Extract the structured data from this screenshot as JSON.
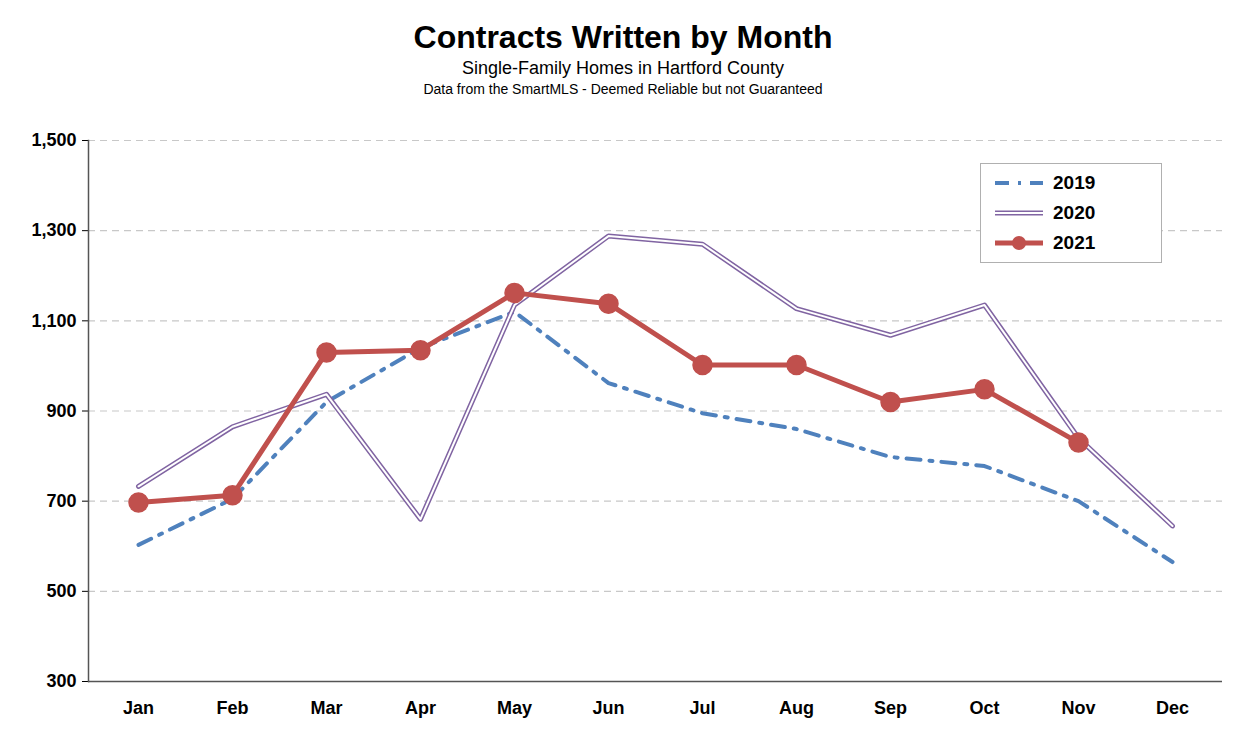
{
  "chart_data": {
    "type": "line",
    "title": "Contracts Written by Month",
    "subtitle": "Single-Family Homes in Hartford County",
    "caption": "Data from the SmartMLS - Deemed Reliable but not Guaranteed",
    "categories": [
      "Jan",
      "Feb",
      "Mar",
      "Apr",
      "May",
      "Jun",
      "Jul",
      "Aug",
      "Sep",
      "Oct",
      "Nov",
      "Dec"
    ],
    "series": [
      {
        "name": "2019",
        "color": "#4f81bd",
        "line_style": "dashdot",
        "marker": "none",
        "values": [
          603,
          705,
          920,
          1040,
          1120,
          962,
          895,
          860,
          798,
          778,
          700,
          565
        ]
      },
      {
        "name": "2020",
        "color": "#8064a2",
        "line_style": "double",
        "marker": "none",
        "values": [
          733,
          865,
          937,
          660,
          1135,
          1288,
          1270,
          1127,
          1068,
          1135,
          840,
          645
        ]
      },
      {
        "name": "2021",
        "color": "#c0504d",
        "line_style": "solid",
        "marker": "circle",
        "values": [
          697,
          713,
          1030,
          1035,
          1162,
          1138,
          1002,
          1002,
          920,
          948,
          830,
          null
        ]
      }
    ],
    "ylim": [
      300,
      1500
    ],
    "yticks": [
      300,
      500,
      700,
      900,
      {
        "value": 1100,
        "label": "1,100"
      },
      {
        "value": 1300,
        "label": "1,300"
      },
      {
        "value": 1500,
        "label": "1,500"
      }
    ],
    "grid": true,
    "legend": "top-right"
  }
}
